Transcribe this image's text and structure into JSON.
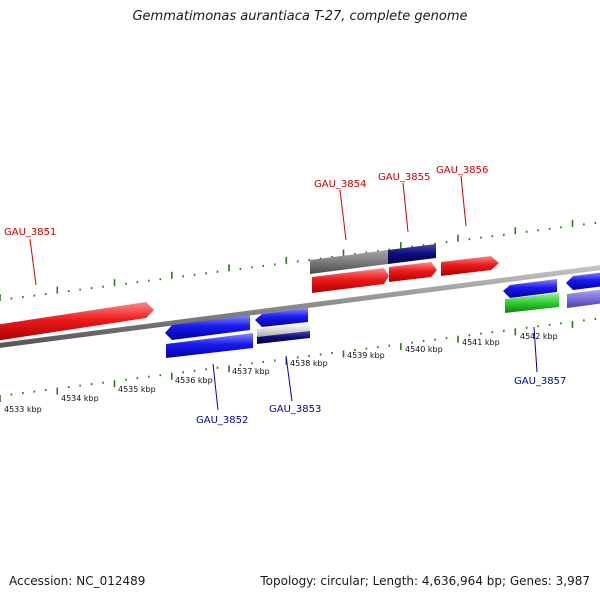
{
  "title": "Gemmatimonas aurantiaca T-27, complete genome",
  "footer": {
    "accession": "Accession: NC_012489",
    "summary": "Topology: circular; Length: 4,636,964 bp; Genes: 3,987"
  },
  "colors": {
    "forward_gene": "#e8131a",
    "reverse_gene": "#1c24e6",
    "backbone": "#8a8a8a",
    "forward_label": "#cc0000",
    "reverse_label": "#0000aa",
    "tick": "#2a7a1a"
  },
  "kbp_labels": [
    "4533 kbp",
    "4534 kbp",
    "4535 kbp",
    "4536 kbp",
    "4537 kbp",
    "4538 kbp",
    "4539 kbp",
    "4540 kbp",
    "4541 kbp",
    "4542 kbp"
  ],
  "gene_labels": {
    "forward": [
      "GAU_3851",
      "GAU_3854",
      "GAU_3855",
      "GAU_3856"
    ],
    "reverse": [
      "GAU_3852",
      "GAU_3853",
      "GAU_3857"
    ]
  }
}
